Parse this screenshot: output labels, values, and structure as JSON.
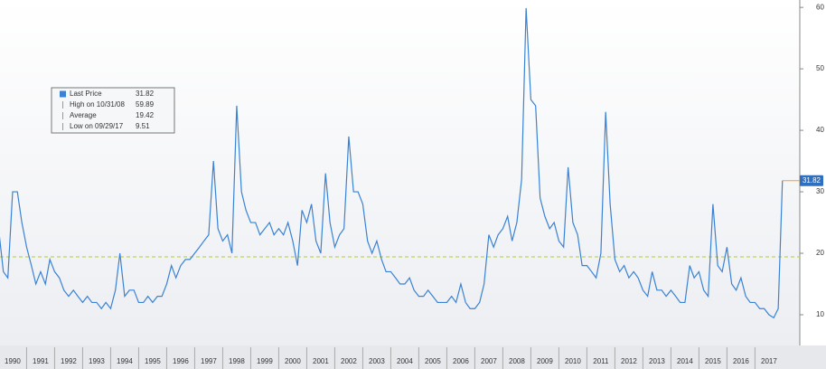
{
  "chart_data": {
    "type": "line",
    "x": [
      1990,
      1990.17,
      1990.33,
      1990.5,
      1990.67,
      1990.83,
      1991,
      1991.17,
      1991.33,
      1991.5,
      1991.67,
      1991.83,
      1992,
      1992.17,
      1992.33,
      1992.5,
      1992.67,
      1992.83,
      1993,
      1993.17,
      1993.33,
      1993.5,
      1993.67,
      1993.83,
      1994,
      1994.17,
      1994.33,
      1994.5,
      1994.67,
      1994.83,
      1995,
      1995.17,
      1995.33,
      1995.5,
      1995.67,
      1995.83,
      1996,
      1996.17,
      1996.33,
      1996.5,
      1996.67,
      1996.83,
      1997,
      1997.17,
      1997.33,
      1997.5,
      1997.67,
      1997.83,
      1998,
      1998.17,
      1998.33,
      1998.5,
      1998.67,
      1998.83,
      1999,
      1999.17,
      1999.33,
      1999.5,
      1999.67,
      1999.83,
      2000,
      2000.17,
      2000.33,
      2000.5,
      2000.67,
      2000.83,
      2001,
      2001.17,
      2001.33,
      2001.5,
      2001.67,
      2001.83,
      2002,
      2002.17,
      2002.33,
      2002.5,
      2002.67,
      2002.83,
      2003,
      2003.17,
      2003.33,
      2003.5,
      2003.67,
      2003.83,
      2004,
      2004.17,
      2004.33,
      2004.5,
      2004.67,
      2004.83,
      2005,
      2005.17,
      2005.33,
      2005.5,
      2005.67,
      2005.83,
      2006,
      2006.17,
      2006.33,
      2006.5,
      2006.67,
      2006.83,
      2007,
      2007.17,
      2007.33,
      2007.5,
      2007.67,
      2007.83,
      2008,
      2008.17,
      2008.33,
      2008.5,
      2008.67,
      2008.83,
      2009,
      2009.17,
      2009.33,
      2009.5,
      2009.67,
      2009.83,
      2010,
      2010.17,
      2010.33,
      2010.5,
      2010.67,
      2010.83,
      2011,
      2011.17,
      2011.33,
      2011.5,
      2011.67,
      2011.83,
      2012,
      2012.17,
      2012.33,
      2012.5,
      2012.67,
      2012.83,
      2013,
      2013.17,
      2013.33,
      2013.5,
      2013.67,
      2013.83,
      2014,
      2014.17,
      2014.33,
      2014.5,
      2014.67,
      2014.83,
      2015,
      2015.17,
      2015.33,
      2015.5,
      2015.67,
      2015.83,
      2016,
      2016.17,
      2016.33,
      2016.5,
      2016.67,
      2016.83,
      2017,
      2017.17,
      2017.33,
      2017.5,
      2017.67,
      2017.83,
      2017.98
    ],
    "series": [
      {
        "name": "Last Price",
        "color": "#3a82d4",
        "values": [
          24,
          17,
          16,
          30,
          30,
          25,
          21,
          18,
          15,
          17,
          15,
          19,
          17,
          16,
          14,
          13,
          14,
          13,
          12,
          13,
          12,
          12,
          11,
          12,
          11,
          14,
          20,
          13,
          14,
          14,
          12,
          12,
          13,
          12,
          13,
          13,
          15,
          18,
          16,
          18,
          19,
          19,
          20,
          21,
          22,
          23,
          35,
          24,
          22,
          23,
          20,
          44,
          30,
          27,
          25,
          25,
          23,
          24,
          25,
          23,
          24,
          23,
          25,
          22,
          18,
          27,
          25,
          28,
          22,
          20,
          33,
          25,
          21,
          23,
          24,
          39,
          30,
          30,
          28,
          22,
          20,
          22,
          19,
          17,
          17,
          16,
          15,
          15,
          16,
          14,
          13,
          13,
          14,
          13,
          12,
          12,
          12,
          13,
          12,
          15,
          12,
          11,
          11,
          12,
          15,
          23,
          21,
          23,
          24,
          26,
          22,
          25,
          32,
          59.89,
          45,
          44,
          29,
          26,
          24,
          25,
          22,
          21,
          34,
          25,
          23,
          18,
          18,
          17,
          16,
          20,
          43,
          28,
          19,
          17,
          18,
          16,
          17,
          16,
          14,
          13,
          17,
          14,
          14,
          13,
          14,
          13,
          12,
          12,
          18,
          16,
          17,
          14,
          13,
          28,
          18,
          17,
          21,
          15,
          14,
          16,
          13,
          12,
          12,
          11,
          11,
          10,
          9.51,
          11,
          31.82
        ]
      }
    ],
    "legend_entries": [
      {
        "label": "Last Price",
        "value": 31.82
      },
      {
        "label": "High on 10/31/08",
        "value": 59.89
      },
      {
        "label": "Average",
        "value": 19.42
      },
      {
        "label": "Low on 09/29/17",
        "value": 9.51
      }
    ],
    "xlim": [
      1990.05,
      2018.6
    ],
    "ylim": [
      5,
      61.2
    ],
    "yticks": [
      10,
      20,
      30,
      40,
      50,
      60
    ],
    "xticks": [
      {
        "value": 1990.5,
        "label": "1990"
      },
      {
        "value": 1991.5,
        "label": "1991"
      },
      {
        "value": 1992.5,
        "label": "1992"
      },
      {
        "value": 1993.5,
        "label": "1993"
      },
      {
        "value": 1994.5,
        "label": "1994"
      },
      {
        "value": 1995.5,
        "label": "1995"
      },
      {
        "value": 1996.5,
        "label": "1996"
      },
      {
        "value": 1997.5,
        "label": "1997"
      },
      {
        "value": 1998.5,
        "label": "1998"
      },
      {
        "value": 1999.5,
        "label": "1999"
      },
      {
        "value": 2000.5,
        "label": "2000"
      },
      {
        "value": 2001.5,
        "label": "2001"
      },
      {
        "value": 2002.5,
        "label": "2002"
      },
      {
        "value": 2003.5,
        "label": "2003"
      },
      {
        "value": 2004.5,
        "label": "2004"
      },
      {
        "value": 2005.5,
        "label": "2005"
      },
      {
        "value": 2006.5,
        "label": "2006"
      },
      {
        "value": 2007.5,
        "label": "2007"
      },
      {
        "value": 2008.5,
        "label": "2008"
      },
      {
        "value": 2009.5,
        "label": "2009"
      },
      {
        "value": 2010.5,
        "label": "2010"
      },
      {
        "value": 2011.5,
        "label": "2011"
      },
      {
        "value": 2012.5,
        "label": "2012"
      },
      {
        "value": 2013.5,
        "label": "2013"
      },
      {
        "value": 2014.5,
        "label": "2014"
      },
      {
        "value": 2015.5,
        "label": "2015"
      },
      {
        "value": 2016.5,
        "label": "2016"
      },
      {
        "value": 2017.5,
        "label": "2017"
      }
    ],
    "average_color": "#b5c93a",
    "tag_color": "#2f6fbf"
  }
}
